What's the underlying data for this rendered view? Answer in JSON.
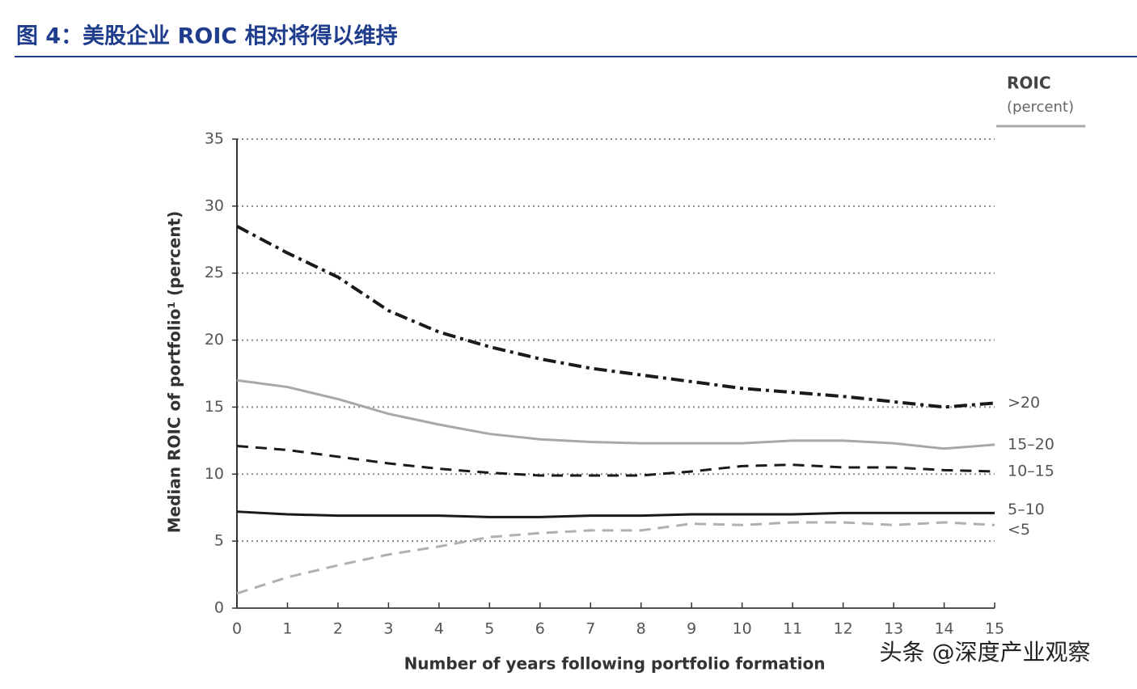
{
  "header": {
    "title": "图 4：美股企业 ROIC 相对将得以维持"
  },
  "chart_data": {
    "type": "line",
    "ylabel": "Median ROIC of portfolio¹ (percent)",
    "xlabel": "Number of years following portfolio formation",
    "legend_title": "ROIC",
    "legend_subtitle": "(percent)",
    "x": [
      0,
      1,
      2,
      3,
      4,
      5,
      6,
      7,
      8,
      9,
      10,
      11,
      12,
      13,
      14,
      15
    ],
    "xlim": [
      0,
      15
    ],
    "xticks": [
      0,
      1,
      2,
      3,
      4,
      5,
      6,
      7,
      8,
      9,
      10,
      11,
      12,
      13,
      14,
      15
    ],
    "ylim": [
      0,
      35
    ],
    "yticks": [
      0,
      5,
      10,
      15,
      20,
      25,
      30,
      35
    ],
    "grid": true,
    "series": [
      {
        "name": ">20",
        "color": "#1a1a1a",
        "dash": "dash-dot",
        "values": [
          28.5,
          26.5,
          24.7,
          22.2,
          20.6,
          19.5,
          18.6,
          17.9,
          17.4,
          16.9,
          16.4,
          16.1,
          15.8,
          15.4,
          15.0,
          15.3
        ]
      },
      {
        "name": "15–20",
        "color": "#a8a8a8",
        "dash": "solid",
        "values": [
          17.0,
          16.5,
          15.6,
          14.5,
          13.7,
          13.0,
          12.6,
          12.4,
          12.3,
          12.3,
          12.3,
          12.5,
          12.5,
          12.3,
          11.9,
          12.2
        ]
      },
      {
        "name": "10–15",
        "color": "#1a1a1a",
        "dash": "dashed",
        "values": [
          12.1,
          11.8,
          11.3,
          10.8,
          10.4,
          10.1,
          9.9,
          9.9,
          9.9,
          10.2,
          10.6,
          10.7,
          10.5,
          10.5,
          10.3,
          10.2
        ]
      },
      {
        "name": "5–10",
        "color": "#1a1a1a",
        "dash": "solid",
        "values": [
          7.2,
          7.0,
          6.9,
          6.9,
          6.9,
          6.8,
          6.8,
          6.9,
          6.9,
          7.0,
          7.0,
          7.0,
          7.1,
          7.1,
          7.1,
          7.1
        ]
      },
      {
        "name": "<5",
        "color": "#b0b0b0",
        "dash": "dashed",
        "values": [
          1.1,
          2.3,
          3.2,
          4.0,
          4.6,
          5.3,
          5.6,
          5.8,
          5.8,
          6.3,
          6.2,
          6.4,
          6.4,
          6.2,
          6.4,
          6.2
        ]
      }
    ]
  },
  "watermark": "头条 @深度产业观察"
}
